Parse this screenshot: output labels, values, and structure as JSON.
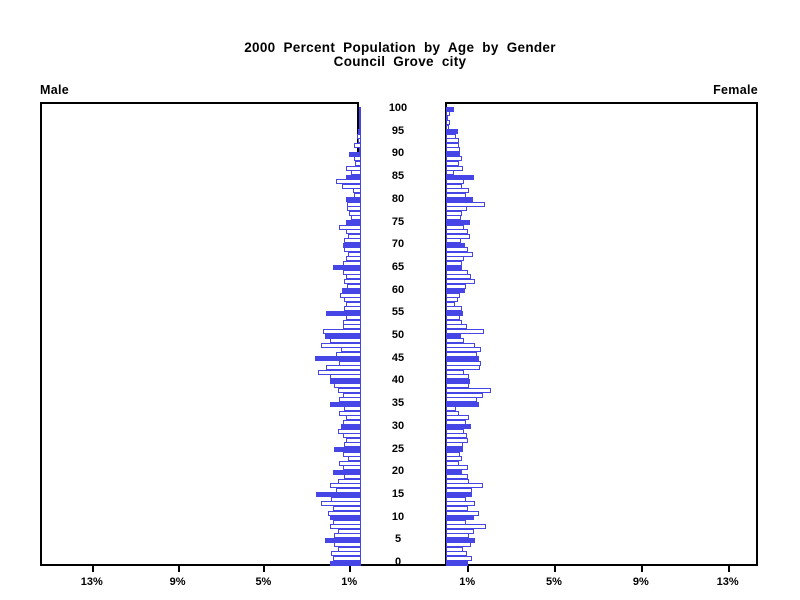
{
  "title": {
    "line1": "2000 Percent Population by Age by Gender",
    "line2": "Council Grove city"
  },
  "panels": {
    "left_header": "Male",
    "right_header": "Female"
  },
  "axes": {
    "male_tick_labels": [
      "13%",
      "9%",
      "5%",
      "1%"
    ],
    "female_tick_labels": [
      "1%",
      "5%",
      "9%",
      "13%"
    ],
    "tick_values_pct": [
      1,
      5,
      9,
      13
    ],
    "age_tick_labels": [
      "0",
      "5",
      "10",
      "15",
      "20",
      "25",
      "30",
      "35",
      "40",
      "45",
      "50",
      "55",
      "60",
      "65",
      "70",
      "75",
      "80",
      "85",
      "90",
      "95",
      "100"
    ]
  },
  "colors": {
    "bar_blue": "#4646e6",
    "frame": "#000000",
    "background": "#ffffff",
    "text": "#000000"
  },
  "chart_data": {
    "type": "bar",
    "subtype": "population-pyramid",
    "title": "2000 Percent Population by Age by Gender — Council Grove city",
    "x_unit": "percent of total population",
    "xlim_pct": [
      0,
      14.8
    ],
    "age_min": 0,
    "age_max": 100,
    "age_step": 1,
    "filled_bar_rule": "bars at ages that are multiples of 5 are solid blue; other ages are white with blue outline",
    "legend": "none",
    "grid": false,
    "series": [
      {
        "name": "Male",
        "side": "left",
        "values_by_age_0_to_100": [
          1.45,
          1.3,
          1.38,
          1.07,
          1.23,
          1.69,
          1.23,
          1.07,
          1.45,
          1.3,
          1.45,
          1.53,
          1.3,
          1.84,
          1.38,
          2.07,
          1.15,
          1.45,
          1.07,
          0.77,
          1.3,
          0.84,
          1.0,
          0.61,
          0.84,
          1.23,
          0.77,
          0.69,
          0.84,
          1.07,
          0.92,
          0.84,
          0.69,
          1.0,
          0.77,
          1.45,
          1.0,
          0.84,
          1.07,
          1.23,
          1.45,
          1.45,
          2.0,
          1.6,
          1.0,
          2.15,
          1.15,
          0.92,
          1.84,
          1.45,
          1.69,
          1.76,
          0.85,
          0.84,
          0.69,
          1.6,
          0.77,
          0.7,
          0.77,
          0.95,
          0.89,
          0.64,
          0.77,
          0.69,
          0.84,
          1.3,
          0.84,
          0.69,
          0.61,
          0.77,
          0.84,
          0.77,
          0.61,
          0.69,
          1.0,
          0.7,
          0.46,
          0.54,
          0.64,
          0.64,
          0.69,
          0.31,
          0.38,
          0.89,
          1.15,
          0.69,
          0.46,
          0.69,
          0.28,
          0.34,
          0.54,
          0.09,
          0.31,
          0.12,
          0.18,
          0.12,
          0.0,
          0.0,
          0.0,
          0.0,
          0.0
        ]
      },
      {
        "name": "Female",
        "side": "right",
        "values_by_age_0_to_100": [
          1.04,
          1.2,
          0.95,
          0.77,
          1.15,
          1.35,
          1.07,
          1.3,
          1.87,
          0.92,
          1.3,
          1.53,
          1.0,
          1.35,
          0.92,
          1.2,
          1.2,
          1.69,
          1.07,
          1.0,
          0.74,
          1.0,
          0.61,
          0.74,
          0.64,
          0.8,
          0.77,
          1.0,
          0.95,
          0.84,
          1.15,
          0.92,
          1.07,
          0.61,
          0.46,
          1.53,
          1.45,
          1.69,
          2.1,
          1.07,
          1.1,
          1.07,
          0.84,
          1.56,
          1.6,
          1.53,
          1.45,
          1.6,
          1.35,
          0.84,
          0.69,
          1.76,
          0.95,
          0.74,
          0.64,
          0.8,
          0.74,
          0.43,
          0.54,
          0.64,
          0.89,
          0.92,
          1.35,
          1.15,
          1.04,
          0.74,
          0.74,
          0.84,
          1.26,
          1.04,
          0.89,
          0.69,
          1.1,
          1.0,
          0.84,
          1.1,
          0.69,
          0.74,
          0.95,
          1.81,
          1.26,
          0.92,
          1.07,
          0.74,
          0.84,
          1.3,
          0.38,
          0.77,
          0.61,
          0.74,
          0.64,
          0.64,
          0.58,
          0.58,
          0.46,
          0.54,
          0.12,
          0.18,
          0.0,
          0.18,
          0.37
        ]
      }
    ]
  }
}
